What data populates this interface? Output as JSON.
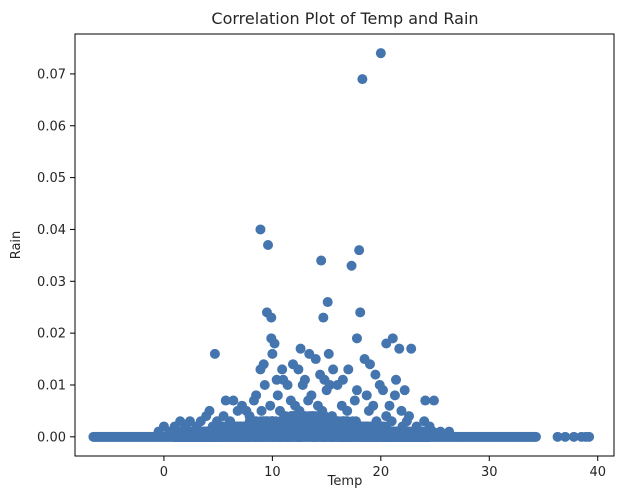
{
  "chart_data": {
    "type": "scatter",
    "title": "Correlation Plot of Temp and Rain",
    "xlabel": "Temp",
    "ylabel": "Rain",
    "xlim": [
      -8.2,
      41.5
    ],
    "ylim": [
      -0.0037,
      0.0777
    ],
    "xticks": [
      0,
      10,
      20,
      30,
      40
    ],
    "yticks": [
      0.0,
      0.01,
      0.02,
      0.03,
      0.04,
      0.05,
      0.06,
      0.07
    ],
    "ytick_labels": [
      "0.00",
      "0.01",
      "0.02",
      "0.03",
      "0.04",
      "0.05",
      "0.06",
      "0.07"
    ],
    "grid": false,
    "marker_color": "#4475ae",
    "series": [
      {
        "points": [
          [
            20.0,
            0.074
          ],
          [
            18.3,
            0.069
          ],
          [
            8.9,
            0.04
          ],
          [
            9.6,
            0.037
          ],
          [
            18.0,
            0.036
          ],
          [
            14.5,
            0.034
          ],
          [
            17.3,
            0.033
          ],
          [
            15.1,
            0.026
          ],
          [
            18.1,
            0.024
          ],
          [
            9.5,
            0.024
          ],
          [
            9.9,
            0.023
          ],
          [
            14.7,
            0.023
          ],
          [
            9.9,
            0.019
          ],
          [
            10.2,
            0.018
          ],
          [
            17.8,
            0.019
          ],
          [
            21.1,
            0.019
          ],
          [
            20.5,
            0.018
          ],
          [
            21.7,
            0.017
          ],
          [
            22.8,
            0.017
          ],
          [
            12.6,
            0.017
          ],
          [
            13.4,
            0.016
          ],
          [
            15.2,
            0.016
          ],
          [
            4.7,
            0.016
          ],
          [
            10.0,
            0.016
          ],
          [
            14.0,
            0.015
          ],
          [
            18.5,
            0.015
          ],
          [
            19.0,
            0.014
          ],
          [
            15.6,
            0.013
          ],
          [
            11.9,
            0.014
          ],
          [
            9.2,
            0.014
          ],
          [
            10.9,
            0.013
          ],
          [
            12.4,
            0.013
          ],
          [
            8.9,
            0.013
          ],
          [
            19.5,
            0.012
          ],
          [
            14.4,
            0.012
          ],
          [
            17.0,
            0.013
          ],
          [
            16.5,
            0.011
          ],
          [
            11.0,
            0.011
          ],
          [
            13.0,
            0.011
          ],
          [
            10.4,
            0.011
          ],
          [
            14.8,
            0.011
          ],
          [
            21.4,
            0.011
          ],
          [
            15.3,
            0.01
          ],
          [
            19.9,
            0.01
          ],
          [
            12.8,
            0.01
          ],
          [
            11.4,
            0.01
          ],
          [
            9.3,
            0.01
          ],
          [
            16.0,
            0.01
          ],
          [
            17.8,
            0.009
          ],
          [
            20.2,
            0.009
          ],
          [
            22.2,
            0.009
          ],
          [
            21.3,
            0.008
          ],
          [
            8.5,
            0.008
          ],
          [
            10.5,
            0.008
          ],
          [
            13.6,
            0.008
          ],
          [
            15.0,
            0.009
          ],
          [
            18.7,
            0.008
          ],
          [
            24.9,
            0.007
          ],
          [
            24.1,
            0.007
          ],
          [
            5.7,
            0.007
          ],
          [
            6.4,
            0.007
          ],
          [
            7.2,
            0.006
          ],
          [
            8.3,
            0.007
          ],
          [
            9.8,
            0.006
          ],
          [
            11.7,
            0.007
          ],
          [
            12.1,
            0.006
          ],
          [
            13.3,
            0.007
          ],
          [
            14.2,
            0.006
          ],
          [
            16.4,
            0.006
          ],
          [
            17.6,
            0.007
          ],
          [
            19.3,
            0.006
          ],
          [
            20.8,
            0.006
          ],
          [
            21.9,
            0.005
          ],
          [
            6.8,
            0.005
          ],
          [
            4.2,
            0.005
          ],
          [
            5.5,
            0.004
          ],
          [
            7.6,
            0.005
          ],
          [
            9.0,
            0.005
          ],
          [
            10.7,
            0.005
          ],
          [
            12.5,
            0.005
          ],
          [
            14.6,
            0.005
          ],
          [
            16.9,
            0.005
          ],
          [
            18.9,
            0.005
          ],
          [
            20.5,
            0.004
          ],
          [
            22.6,
            0.004
          ],
          [
            3.4,
            0.003
          ],
          [
            2.4,
            0.003
          ],
          [
            1.5,
            0.003
          ],
          [
            3.9,
            0.004
          ],
          [
            4.9,
            0.003
          ],
          [
            6.1,
            0.003
          ],
          [
            7.9,
            0.004
          ],
          [
            9.4,
            0.003
          ],
          [
            11.2,
            0.004
          ],
          [
            13.0,
            0.003
          ],
          [
            15.5,
            0.004
          ],
          [
            17.4,
            0.003
          ],
          [
            19.6,
            0.003
          ],
          [
            21.0,
            0.003
          ],
          [
            22.4,
            0.003
          ],
          [
            24.0,
            0.003
          ],
          [
            24.5,
            0.002
          ],
          [
            0.0,
            0.002
          ],
          [
            1.0,
            0.002
          ],
          [
            2.0,
            0.002
          ],
          [
            3.0,
            0.002
          ],
          [
            4.5,
            0.002
          ],
          [
            5.8,
            0.002
          ],
          [
            7.1,
            0.002
          ],
          [
            8.6,
            0.002
          ],
          [
            10.1,
            0.002
          ],
          [
            11.8,
            0.002
          ],
          [
            13.7,
            0.002
          ],
          [
            15.9,
            0.002
          ],
          [
            18.2,
            0.002
          ],
          [
            20.1,
            0.002
          ],
          [
            22.0,
            0.002
          ],
          [
            23.3,
            0.002
          ],
          [
            24.8,
            0.001
          ],
          [
            25.5,
            0.001
          ],
          [
            26.3,
            0.001
          ],
          [
            0.5,
            0.001
          ],
          [
            -0.5,
            0.001
          ],
          [
            2.7,
            0.001
          ],
          [
            5.1,
            0.001
          ],
          [
            6.6,
            0.001
          ],
          [
            8.1,
            0.001
          ],
          [
            9.7,
            0.001
          ],
          [
            11.5,
            0.001
          ],
          [
            12.9,
            0.001
          ],
          [
            14.9,
            0.001
          ],
          [
            16.7,
            0.001
          ],
          [
            18.6,
            0.001
          ],
          [
            20.7,
            0.001
          ],
          [
            22.9,
            0.001
          ],
          [
            36.3,
            0.0
          ],
          [
            37.0,
            0.0
          ],
          [
            37.8,
            0.0
          ],
          [
            38.5,
            0.0
          ],
          [
            38.9,
            0.0
          ],
          [
            39.2,
            0.0
          ]
        ],
        "zero_row_from": -6.5,
        "zero_row_to": 34.4,
        "dense_band": {
          "x_from": 1.0,
          "x_to": 24.5,
          "y_max": 0.0045
        }
      }
    ]
  }
}
